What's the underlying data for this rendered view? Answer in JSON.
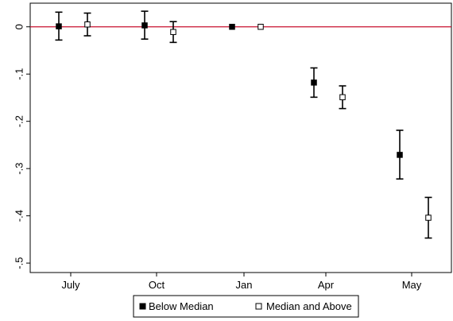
{
  "chart_data": {
    "type": "scatter",
    "title": "",
    "xlabel": "",
    "ylabel": "",
    "categories": [
      "July",
      "Oct",
      "Jan",
      "Apr",
      "May"
    ],
    "ylim": [
      -0.52,
      0.05
    ],
    "yticks": [
      0,
      -0.1,
      -0.2,
      -0.3,
      -0.4,
      -0.5
    ],
    "ytick_labels": [
      "0",
      "-.1",
      "-.2",
      "-.3",
      "-.4",
      "-.5"
    ],
    "reference_line": {
      "y": 0,
      "color": "#c8102e"
    },
    "grid": false,
    "legend_position": "bottom",
    "series": [
      {
        "name": "Below Median",
        "marker": "filled-square",
        "color": "#000000",
        "points": [
          {
            "category": "July",
            "y": 0.001,
            "lo": -0.028,
            "hi": 0.031
          },
          {
            "category": "Oct",
            "y": 0.003,
            "lo": -0.026,
            "hi": 0.033
          },
          {
            "category": "Jan",
            "y": 0.0,
            "lo": 0.0,
            "hi": 0.0
          },
          {
            "category": "Apr",
            "y": -0.118,
            "lo": -0.149,
            "hi": -0.087
          },
          {
            "category": "May",
            "y": -0.271,
            "lo": -0.322,
            "hi": -0.219
          }
        ]
      },
      {
        "name": "Median and Above",
        "marker": "hollow-square",
        "color": "#000000",
        "points": [
          {
            "category": "July",
            "y": 0.005,
            "lo": -0.019,
            "hi": 0.029
          },
          {
            "category": "Oct",
            "y": -0.011,
            "lo": -0.033,
            "hi": 0.011
          },
          {
            "category": "Jan",
            "y": 0.0,
            "lo": 0.0,
            "hi": 0.0
          },
          {
            "category": "Apr",
            "y": -0.149,
            "lo": -0.173,
            "hi": -0.125
          },
          {
            "category": "May",
            "y": -0.404,
            "lo": -0.447,
            "hi": -0.361
          }
        ]
      }
    ]
  }
}
